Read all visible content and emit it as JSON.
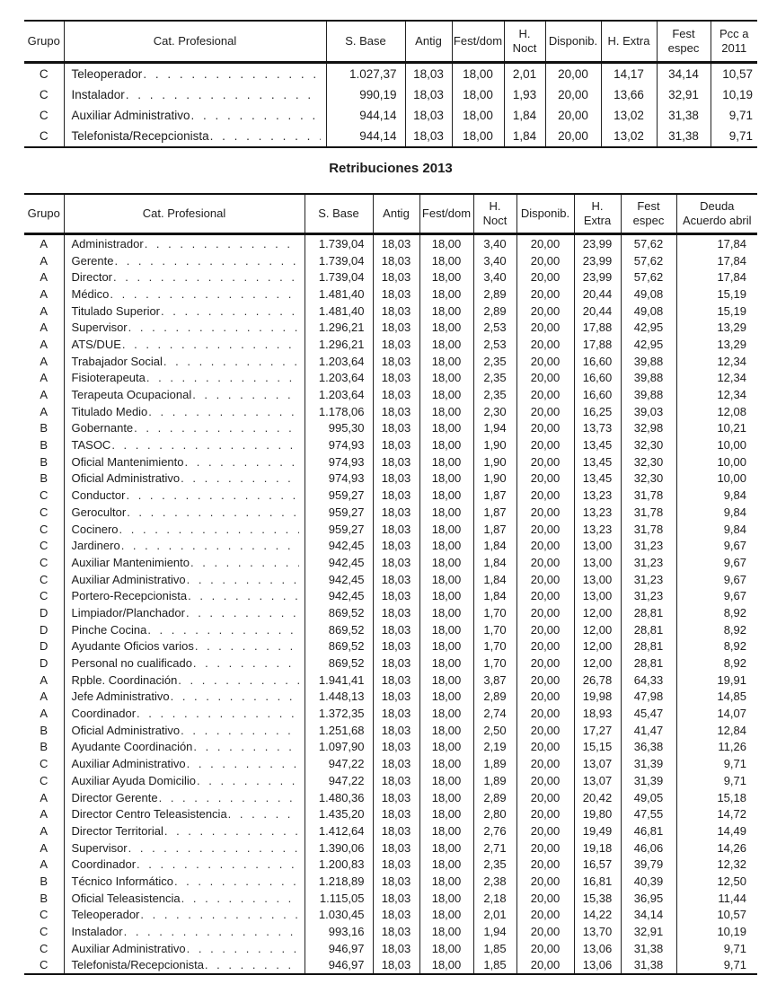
{
  "title": "Retribuciones 2013",
  "colors": {
    "text": "#1c1c1c",
    "border": "#111111",
    "background": "#ffffff"
  },
  "table1": {
    "columns": [
      "Grupo",
      "Cat. Profesional",
      "S. Base",
      "Antig",
      "Fest/dom",
      "H. Noct",
      "Disponib.",
      "H. Extra",
      "Fest\nespec",
      "Pcc a\n2011"
    ],
    "rows": [
      [
        "C",
        "Teleoperador",
        "1.027,37",
        "18,03",
        "18,00",
        "2,01",
        "20,00",
        "14,17",
        "34,14",
        "10,57"
      ],
      [
        "C",
        "Instalador",
        "990,19",
        "18,03",
        "18,00",
        "1,93",
        "20,00",
        "13,66",
        "32,91",
        "10,19"
      ],
      [
        "C",
        "Auxiliar Administrativo",
        "944,14",
        "18,03",
        "18,00",
        "1,84",
        "20,00",
        "13,02",
        "31,38",
        "9,71"
      ],
      [
        "C",
        "Telefonista/Recepcionista",
        "944,14",
        "18,03",
        "18,00",
        "1,84",
        "20,00",
        "13,02",
        "31,38",
        "9,71"
      ]
    ]
  },
  "table2": {
    "columns": [
      "Grupo",
      "Cat. Profesional",
      "S. Base",
      "Antig",
      "Fest/dom",
      "H.\nNoct",
      "Disponib.",
      "H.\nExtra",
      "Fest\nespec",
      "Deuda\nAcuerdo abril"
    ],
    "rows": [
      [
        "A",
        "Administrador",
        "1.739,04",
        "18,03",
        "18,00",
        "3,40",
        "20,00",
        "23,99",
        "57,62",
        "17,84"
      ],
      [
        "A",
        "Gerente",
        "1.739,04",
        "18,03",
        "18,00",
        "3,40",
        "20,00",
        "23,99",
        "57,62",
        "17,84"
      ],
      [
        "A",
        "Director",
        "1.739,04",
        "18,03",
        "18,00",
        "3,40",
        "20,00",
        "23,99",
        "57,62",
        "17,84"
      ],
      [
        "A",
        "Médico",
        "1.481,40",
        "18,03",
        "18,00",
        "2,89",
        "20,00",
        "20,44",
        "49,08",
        "15,19"
      ],
      [
        "A",
        "Titulado Superior",
        "1.481,40",
        "18,03",
        "18,00",
        "2,89",
        "20,00",
        "20,44",
        "49,08",
        "15,19"
      ],
      [
        "A",
        "Supervisor",
        "1.296,21",
        "18,03",
        "18,00",
        "2,53",
        "20,00",
        "17,88",
        "42,95",
        "13,29"
      ],
      [
        "A",
        "ATS/DUE",
        "1.296,21",
        "18,03",
        "18,00",
        "2,53",
        "20,00",
        "17,88",
        "42,95",
        "13,29"
      ],
      [
        "A",
        "Trabajador Social",
        "1.203,64",
        "18,03",
        "18,00",
        "2,35",
        "20,00",
        "16,60",
        "39,88",
        "12,34"
      ],
      [
        "A",
        "Fisioterapeuta",
        "1.203,64",
        "18,03",
        "18,00",
        "2,35",
        "20,00",
        "16,60",
        "39,88",
        "12,34"
      ],
      [
        "A",
        "Terapeuta Ocupacional",
        "1.203,64",
        "18,03",
        "18,00",
        "2,35",
        "20,00",
        "16,60",
        "39,88",
        "12,34"
      ],
      [
        "A",
        "Titulado Medio",
        "1.178,06",
        "18,03",
        "18,00",
        "2,30",
        "20,00",
        "16,25",
        "39,03",
        "12,08"
      ],
      [
        "B",
        "Gobernante",
        "995,30",
        "18,03",
        "18,00",
        "1,94",
        "20,00",
        "13,73",
        "32,98",
        "10,21"
      ],
      [
        "B",
        "TASOC",
        "974,93",
        "18,03",
        "18,00",
        "1,90",
        "20,00",
        "13,45",
        "32,30",
        "10,00"
      ],
      [
        "B",
        "Oficial Mantenimiento",
        "974,93",
        "18,03",
        "18,00",
        "1,90",
        "20,00",
        "13,45",
        "32,30",
        "10,00"
      ],
      [
        "B",
        "Oficial Administrativo",
        "974,93",
        "18,03",
        "18,00",
        "1,90",
        "20,00",
        "13,45",
        "32,30",
        "10,00"
      ],
      [
        "C",
        "Conductor",
        "959,27",
        "18,03",
        "18,00",
        "1,87",
        "20,00",
        "13,23",
        "31,78",
        "9,84"
      ],
      [
        "C",
        "Gerocultor",
        "959,27",
        "18,03",
        "18,00",
        "1,87",
        "20,00",
        "13,23",
        "31,78",
        "9,84"
      ],
      [
        "C",
        "Cocinero",
        "959,27",
        "18,03",
        "18,00",
        "1,87",
        "20,00",
        "13,23",
        "31,78",
        "9,84"
      ],
      [
        "C",
        "Jardinero",
        "942,45",
        "18,03",
        "18,00",
        "1,84",
        "20,00",
        "13,00",
        "31,23",
        "9,67"
      ],
      [
        "C",
        "Auxiliar Mantenimiento",
        "942,45",
        "18,03",
        "18,00",
        "1,84",
        "20,00",
        "13,00",
        "31,23",
        "9,67"
      ],
      [
        "C",
        "Auxiliar Administrativo",
        "942,45",
        "18,03",
        "18,00",
        "1,84",
        "20,00",
        "13,00",
        "31,23",
        "9,67"
      ],
      [
        "C",
        "Portero-Recepcionista",
        "942,45",
        "18,03",
        "18,00",
        "1,84",
        "20,00",
        "13,00",
        "31,23",
        "9,67"
      ],
      [
        "D",
        "Limpiador/Planchador",
        "869,52",
        "18,03",
        "18,00",
        "1,70",
        "20,00",
        "12,00",
        "28,81",
        "8,92"
      ],
      [
        "D",
        "Pinche Cocina",
        "869,52",
        "18,03",
        "18,00",
        "1,70",
        "20,00",
        "12,00",
        "28,81",
        "8,92"
      ],
      [
        "D",
        "Ayudante Oficios varios",
        "869,52",
        "18,03",
        "18,00",
        "1,70",
        "20,00",
        "12,00",
        "28,81",
        "8,92"
      ],
      [
        "D",
        "Personal no cualificado",
        "869,52",
        "18,03",
        "18,00",
        "1,70",
        "20,00",
        "12,00",
        "28,81",
        "8,92"
      ],
      [
        "A",
        "Rpble. Coordinación",
        "1.941,41",
        "18,03",
        "18,00",
        "3,87",
        "20,00",
        "26,78",
        "64,33",
        "19,91"
      ],
      [
        "A",
        "Jefe Administrativo",
        "1.448,13",
        "18,03",
        "18,00",
        "2,89",
        "20,00",
        "19,98",
        "47,98",
        "14,85"
      ],
      [
        "A",
        "Coordinador",
        "1.372,35",
        "18,03",
        "18,00",
        "2,74",
        "20,00",
        "18,93",
        "45,47",
        "14,07"
      ],
      [
        "B",
        "Oficial Administrativo",
        "1.251,68",
        "18,03",
        "18,00",
        "2,50",
        "20,00",
        "17,27",
        "41,47",
        "12,84"
      ],
      [
        "B",
        "Ayudante Coordinación",
        "1.097,90",
        "18,03",
        "18,00",
        "2,19",
        "20,00",
        "15,15",
        "36,38",
        "11,26"
      ],
      [
        "C",
        "Auxiliar Administrativo",
        "947,22",
        "18,03",
        "18,00",
        "1,89",
        "20,00",
        "13,07",
        "31,39",
        "9,71"
      ],
      [
        "C",
        "Auxiliar Ayuda Domicilio",
        "947,22",
        "18,03",
        "18,00",
        "1,89",
        "20,00",
        "13,07",
        "31,39",
        "9,71"
      ],
      [
        "A",
        "Director Gerente",
        "1.480,36",
        "18,03",
        "18,00",
        "2,89",
        "20,00",
        "20,42",
        "49,05",
        "15,18"
      ],
      [
        "A",
        "Director Centro Teleasistencia",
        "1.435,20",
        "18,03",
        "18,00",
        "2,80",
        "20,00",
        "19,80",
        "47,55",
        "14,72"
      ],
      [
        "A",
        "Director Territorial",
        "1.412,64",
        "18,03",
        "18,00",
        "2,76",
        "20,00",
        "19,49",
        "46,81",
        "14,49"
      ],
      [
        "A",
        "Supervisor",
        "1.390,06",
        "18,03",
        "18,00",
        "2,71",
        "20,00",
        "19,18",
        "46,06",
        "14,26"
      ],
      [
        "A",
        "Coordinador",
        "1.200,83",
        "18,03",
        "18,00",
        "2,35",
        "20,00",
        "16,57",
        "39,79",
        "12,32"
      ],
      [
        "B",
        "Técnico Informático",
        "1.218,89",
        "18,03",
        "18,00",
        "2,38",
        "20,00",
        "16,81",
        "40,39",
        "12,50"
      ],
      [
        "B",
        "Oficial Teleasistencia",
        "1.115,05",
        "18,03",
        "18,00",
        "2,18",
        "20,00",
        "15,38",
        "36,95",
        "11,44"
      ],
      [
        "C",
        "Teleoperador",
        "1.030,45",
        "18,03",
        "18,00",
        "2,01",
        "20,00",
        "14,22",
        "34,14",
        "10,57"
      ],
      [
        "C",
        "Instalador",
        "993,16",
        "18,03",
        "18,00",
        "1,94",
        "20,00",
        "13,70",
        "32,91",
        "10,19"
      ],
      [
        "C",
        "Auxiliar Administrativo",
        "946,97",
        "18,03",
        "18,00",
        "1,85",
        "20,00",
        "13,06",
        "31,38",
        "9,71"
      ],
      [
        "C",
        "Telefonista/Recepcionista",
        "946,97",
        "18,03",
        "18,00",
        "1,85",
        "20,00",
        "13,06",
        "31,38",
        "9,71"
      ]
    ]
  }
}
